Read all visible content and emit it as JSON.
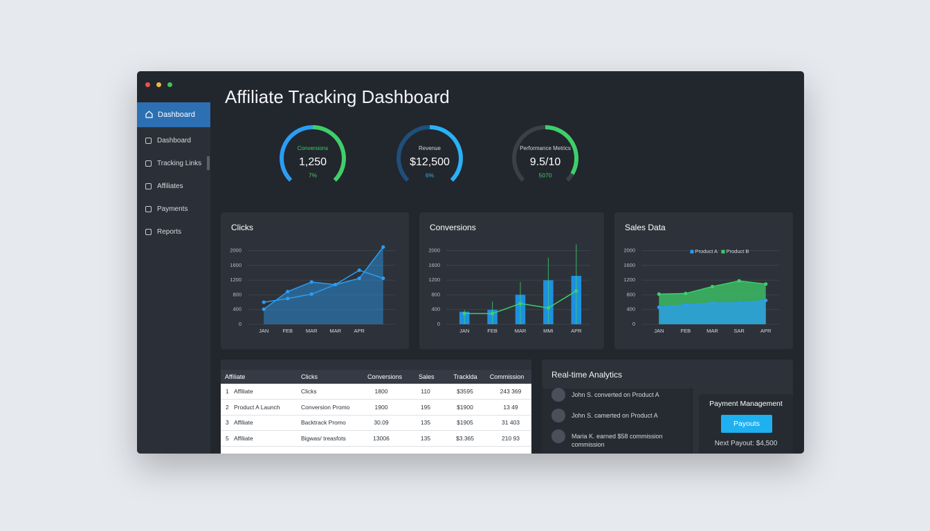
{
  "header": {
    "title": "Affiliate Tracking Dashboard"
  },
  "sidebar": {
    "active": "Dashboard",
    "items": [
      "Dashboard",
      "Tracking Links",
      "Affiliates",
      "Payments",
      "Reports"
    ]
  },
  "gauges": [
    {
      "label": "Conversions",
      "value": "1,250",
      "change": "7%"
    },
    {
      "label": "Revenue",
      "value": "$12,500",
      "change": "6%"
    },
    {
      "label": "Performance Metrics",
      "value": "9.5/10",
      "change": "5070"
    }
  ],
  "chart_data": [
    {
      "type": "line",
      "title": "Clicks",
      "categories": [
        "JAN",
        "FEB",
        "MAR",
        "MAR",
        "APR",
        null
      ],
      "series": [
        {
          "color": "#2a9df4",
          "area": true,
          "values": [
            410,
            890,
            1150,
            1080,
            1250,
            2100
          ]
        },
        {
          "color": "#2a9df4",
          "values": [
            600,
            700,
            820,
            1080,
            1470,
            1250
          ]
        }
      ],
      "ylim": [
        0,
        2200
      ],
      "yticks": [
        0,
        400,
        800,
        1200,
        1600,
        2000
      ],
      "grid": true
    },
    {
      "type": "bar",
      "title": "Conversions",
      "categories": [
        "JAN",
        "FEB",
        "MAR",
        "MMI",
        "APR"
      ],
      "series": [
        {
          "style": "bar",
          "color": "#1e90e0",
          "values": [
            342,
            393,
            804,
            1197,
            1317
          ]
        },
        {
          "style": "whisker",
          "color": "#3ecf6a",
          "values": [
            393,
            616,
            1146,
            1813,
            2172
          ]
        },
        {
          "style": "line",
          "color": "#3ecf6a",
          "values": [
            291,
            291,
            564,
            445,
            906
          ]
        }
      ],
      "ylim": [
        0,
        2200
      ],
      "yticks": [
        0,
        400,
        800,
        1200,
        1600,
        2000
      ],
      "grid": true
    },
    {
      "type": "area",
      "title": "Sales Data",
      "legend": "top",
      "categories": [
        "JAN",
        "FEB",
        "MAR",
        "SAR",
        "APR"
      ],
      "series": [
        {
          "name": "Product A",
          "color": "#2a9df4",
          "values": [
            462,
            530,
            581,
            581,
            650
          ]
        },
        {
          "name": "Product B",
          "color": "#3ecf6a",
          "values": [
            821,
            838,
            1026,
            1180,
            1094
          ]
        }
      ],
      "ylim": [
        0,
        2200
      ],
      "yticks": [
        0,
        400,
        800,
        1200,
        1600,
        2000
      ],
      "grid": true
    }
  ],
  "table": {
    "header": [
      "Affiliate",
      "Clicks",
      "Conversions",
      "Sales",
      "Tracklda",
      "Commission"
    ],
    "rows": [
      [
        "1",
        "Affiliate",
        "Clicks",
        "1800",
        "110",
        "$3595",
        "243 369"
      ],
      [
        "2",
        "Product A Launch",
        "Conversion Promo",
        "1900",
        "195",
        "$1900",
        "13 49"
      ],
      [
        "3",
        "Affiliate",
        "Backtrack Promo",
        "30.09",
        "135",
        "$1905",
        "31 403"
      ],
      [
        "5",
        "Affiliate",
        "Bigwas/ treasfots",
        "13006",
        "135",
        "$3.365",
        "210 93"
      ]
    ]
  },
  "analytics": {
    "title": "Real-time Analytics",
    "events": [
      "John S. converted on Product A",
      "John S. camerted on Product A",
      "Maria K. earned $58 commission commission"
    ]
  },
  "payments": {
    "title": "Payment Management",
    "button": "Payouts",
    "next": "Next Payout: $4,500"
  }
}
